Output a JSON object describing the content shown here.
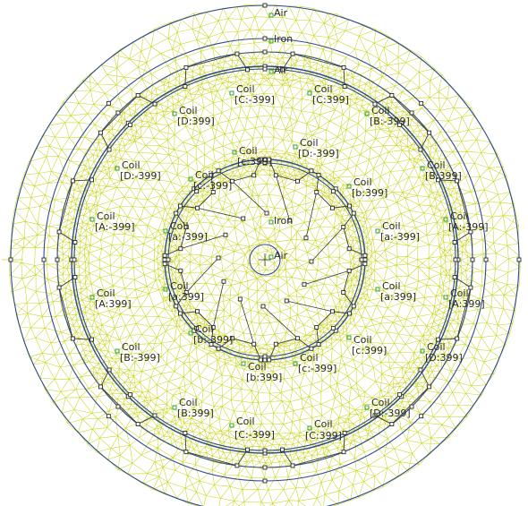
{
  "colors": {
    "background": "#ffffff",
    "mesh": "#c8d61f",
    "mesh_dense": "#b9c800",
    "boundary": "#2e4a8f",
    "segment": "#3a3a3a",
    "node_fill": "#ffffff",
    "node_stroke": "#2a2a2a",
    "label_marker": "#3aa23a",
    "label_text": "#2b2b2b"
  },
  "block_labels": [
    {
      "id": "air-outer",
      "name": "Air",
      "circuit": ""
    },
    {
      "id": "iron-outer",
      "name": "Iron",
      "circuit": ""
    },
    {
      "id": "air-gap",
      "name": "Air",
      "circuit": ""
    },
    {
      "id": "iron-inner",
      "name": "Iron",
      "circuit": ""
    },
    {
      "id": "air-center",
      "name": "Air",
      "circuit": ""
    },
    {
      "id": "coil-c-neg-top",
      "name": "Coil",
      "circuit": "[C:-399]"
    },
    {
      "id": "coil-c-pos-top",
      "name": "Coil",
      "circuit": "[C:399]"
    },
    {
      "id": "coil-d-pos-tl",
      "name": "Coil",
      "circuit": "[D:399]"
    },
    {
      "id": "coil-b-neg-tr",
      "name": "Coil",
      "circuit": "[B:-399]"
    },
    {
      "id": "coil-d-neg-l",
      "name": "Coil",
      "circuit": "[D:-399]"
    },
    {
      "id": "coil-b-pos-r",
      "name": "Coil",
      "circuit": "[B:399]"
    },
    {
      "id": "coil-a-neg-l",
      "name": "Coil",
      "circuit": "[A:-399]"
    },
    {
      "id": "coil-a-neg-r",
      "name": "Coil",
      "circuit": "[A:-399]"
    },
    {
      "id": "coil-a-pos-l",
      "name": "Coil",
      "circuit": "[A:399]"
    },
    {
      "id": "coil-a-pos-r",
      "name": "Coil",
      "circuit": "[A:399]"
    },
    {
      "id": "coil-b-neg-bl",
      "name": "Coil",
      "circuit": "[B:-399]"
    },
    {
      "id": "coil-d-pos-br",
      "name": "Coil",
      "circuit": "[D:399]"
    },
    {
      "id": "coil-b-pos-b",
      "name": "Coil",
      "circuit": "[B:399]"
    },
    {
      "id": "coil-d-neg-b",
      "name": "Coil",
      "circuit": "[D:-399]"
    },
    {
      "id": "coil-c-neg-bottom",
      "name": "Coil",
      "circuit": "[C:-399]"
    },
    {
      "id": "coil-c-pos-bottom",
      "name": "Coil",
      "circuit": "[C:399]"
    },
    {
      "id": "rcoil-c-pos",
      "name": "Coil",
      "circuit": "[c:399]"
    },
    {
      "id": "rcoil-d-neg",
      "name": "Coil",
      "circuit": "[D:-399]"
    },
    {
      "id": "rcoil-c-neg-tl",
      "name": "Coil",
      "circuit": "[c:-399]"
    },
    {
      "id": "rcoil-b-pos-r",
      "name": "Coil",
      "circuit": "[b:399]"
    },
    {
      "id": "rcoil-a-neg-l",
      "name": "Coil",
      "circuit": "[a:-399]"
    },
    {
      "id": "rcoil-a-neg-r",
      "name": "Coil",
      "circuit": "[a:-399]"
    },
    {
      "id": "rcoil-a-pos-l",
      "name": "Coil",
      "circuit": "[a:399]"
    },
    {
      "id": "rcoil-a-pos-r",
      "name": "Coil",
      "circuit": "[a:399]"
    },
    {
      "id": "rcoil-b-neg",
      "name": "Coil",
      "circuit": "[b:-399]"
    },
    {
      "id": "rcoil-c-pos-br",
      "name": "Coil",
      "circuit": "[c:399]"
    },
    {
      "id": "rcoil-c-neg-b",
      "name": "Coil",
      "circuit": "[c:-399]"
    },
    {
      "id": "rcoil-b-pos-b",
      "name": "Coil",
      "circuit": "[b:399]"
    }
  ]
}
